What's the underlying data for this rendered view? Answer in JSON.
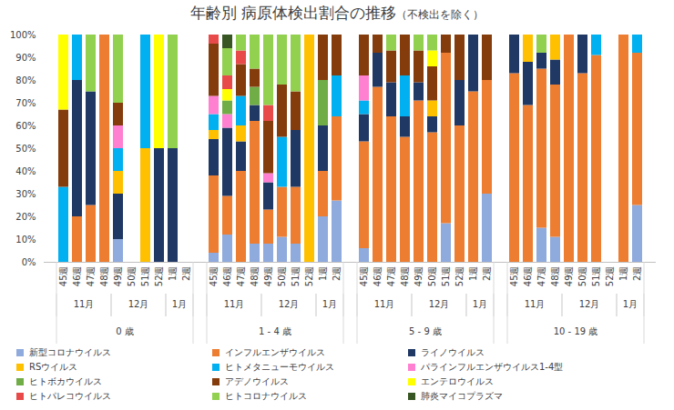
{
  "chart_data": {
    "type": "bar",
    "stacked": true,
    "title": "年齢別 病原体検出割合の推移",
    "subtitle": "（不検出を除く）",
    "categories": [
      "45週",
      "46週",
      "47週",
      "48週",
      "49週",
      "50週",
      "51週",
      "52週",
      "1週",
      "2週",
      "45週",
      "46週",
      "47週",
      "48週",
      "49週",
      "50週",
      "51週",
      "52週",
      "1週",
      "2週",
      "45週",
      "46週",
      "47週",
      "48週",
      "49週",
      "50週",
      "51週",
      "52週",
      "1週",
      "2週",
      "45週",
      "46週",
      "47週",
      "48週",
      "49週",
      "50週",
      "51週",
      "52週",
      "1週",
      "2週"
    ],
    "category_months": [
      "11月",
      "11月",
      "11月",
      "11月",
      "12月",
      "12月",
      "12月",
      "12月",
      "1月",
      "1月",
      "11月",
      "11月",
      "11月",
      "11月",
      "12月",
      "12月",
      "12月",
      "12月",
      "1月",
      "1月",
      "11月",
      "11月",
      "11月",
      "11月",
      "12月",
      "12月",
      "12月",
      "12月",
      "1月",
      "1月",
      "11月",
      "11月",
      "11月",
      "11月",
      "12月",
      "12月",
      "12月",
      "12月",
      "1月",
      "1月"
    ],
    "category_groups": [
      "0 歳",
      "0 歳",
      "0 歳",
      "0 歳",
      "0 歳",
      "0 歳",
      "0 歳",
      "0 歳",
      "0 歳",
      "0 歳",
      "1 - 4 歳",
      "1 - 4 歳",
      "1 - 4 歳",
      "1 - 4 歳",
      "1 - 4 歳",
      "1 - 4 歳",
      "1 - 4 歳",
      "1 - 4 歳",
      "1 - 4 歳",
      "1 - 4 歳",
      "5 - 9 歳",
      "5 - 9 歳",
      "5 - 9 歳",
      "5 - 9 歳",
      "5 - 9 歳",
      "5 - 9 歳",
      "5 - 9 歳",
      "5 - 9 歳",
      "5 - 9 歳",
      "5 - 9 歳",
      "10 - 19 歳",
      "10 - 19 歳",
      "10 - 19 歳",
      "10 - 19 歳",
      "10 - 19 歳",
      "10 - 19 歳",
      "10 - 19 歳",
      "10 - 19 歳",
      "10 - 19 歳",
      "10 - 19 歳"
    ],
    "ylim": [
      0,
      100
    ],
    "yticks": [
      {
        "value": 0,
        "label": "0%"
      },
      {
        "value": 10,
        "label": "10%"
      },
      {
        "value": 20,
        "label": "20%"
      },
      {
        "value": 30,
        "label": "30%"
      },
      {
        "value": 40,
        "label": "40%"
      },
      {
        "value": 50,
        "label": "50%"
      },
      {
        "value": 60,
        "label": "60%"
      },
      {
        "value": 70,
        "label": "70%"
      },
      {
        "value": 80,
        "label": "80%"
      },
      {
        "value": 90,
        "label": "90%"
      },
      {
        "value": 100,
        "label": "100%"
      }
    ],
    "grid": false,
    "legend": "bottom",
    "series": [
      {
        "name": "新型コロナウイルス",
        "color": "#8faadc",
        "values": [
          0,
          0,
          0,
          0,
          10,
          0,
          0,
          0,
          0,
          0,
          4,
          12,
          0,
          8,
          8,
          11,
          8,
          0,
          20,
          27,
          6,
          0,
          0,
          0,
          0,
          0,
          17,
          0,
          0,
          30,
          0,
          0,
          15,
          11,
          0,
          0,
          0,
          0,
          0,
          25
        ]
      },
      {
        "name": "インフルエンザウイルス",
        "color": "#ed7d31",
        "values": [
          0,
          20,
          25,
          100,
          0,
          0,
          0,
          0,
          0,
          0,
          34,
          17,
          40,
          54,
          15,
          22,
          25,
          0,
          20,
          37,
          47,
          77,
          64,
          55,
          71,
          57,
          75,
          60,
          75,
          50,
          83,
          69,
          70,
          67,
          100,
          83,
          91,
          0,
          100,
          67
        ]
      },
      {
        "name": "ライノウイルス",
        "color": "#203864",
        "values": [
          0,
          60,
          50,
          0,
          20,
          0,
          0,
          50,
          50,
          0,
          16,
          30,
          13,
          7,
          12,
          0,
          25,
          0,
          20,
          0,
          12,
          15,
          15,
          9,
          8,
          7,
          0,
          20,
          25,
          0,
          17,
          19,
          7,
          11,
          0,
          17,
          0,
          0,
          0,
          0
        ]
      },
      {
        "name": "RSウイルス",
        "color": "#ffc000",
        "values": [
          0,
          0,
          0,
          0,
          10,
          0,
          50,
          0,
          0,
          0,
          4,
          0,
          7,
          0,
          0,
          0,
          0,
          100,
          0,
          0,
          0,
          0,
          0,
          0,
          0,
          7,
          0,
          0,
          0,
          0,
          0,
          12,
          0,
          11,
          0,
          0,
          0,
          0,
          0,
          0
        ]
      },
      {
        "name": "ヒトメタニューモウイルス",
        "color": "#00b0f0",
        "values": [
          33,
          20,
          0,
          0,
          10,
          0,
          50,
          0,
          0,
          0,
          7,
          0,
          13,
          0,
          0,
          22,
          0,
          0,
          0,
          18,
          6,
          0,
          0,
          18,
          0,
          0,
          0,
          0,
          0,
          0,
          0,
          0,
          0,
          0,
          0,
          0,
          9,
          0,
          0,
          8
        ]
      },
      {
        "name": "パラインフルエンザウイルス1-4型",
        "color": "#ff7fd0",
        "values": [
          0,
          0,
          0,
          0,
          10,
          0,
          0,
          0,
          0,
          0,
          8,
          6,
          0,
          0,
          4,
          0,
          0,
          0,
          0,
          0,
          11,
          0,
          0,
          0,
          0,
          0,
          0,
          0,
          0,
          0,
          0,
          0,
          0,
          0,
          0,
          0,
          0,
          0,
          0,
          0
        ]
      },
      {
        "name": "ヒトボカウイルス",
        "color": "#70ad47",
        "values": [
          0,
          0,
          0,
          0,
          0,
          0,
          0,
          0,
          0,
          0,
          0,
          6,
          0,
          8,
          0,
          0,
          0,
          0,
          20,
          0,
          0,
          0,
          0,
          0,
          0,
          0,
          0,
          0,
          0,
          0,
          0,
          0,
          0,
          0,
          0,
          0,
          0,
          0,
          0,
          0
        ]
      },
      {
        "name": "アデノウイルス",
        "color": "#843c0c",
        "values": [
          34,
          0,
          0,
          0,
          10,
          0,
          0,
          0,
          0,
          0,
          23,
          0,
          14,
          8,
          23,
          23,
          17,
          0,
          20,
          18,
          18,
          8,
          14,
          18,
          14,
          15,
          8,
          20,
          0,
          20,
          0,
          0,
          0,
          0,
          0,
          0,
          0,
          0,
          0,
          0
        ]
      },
      {
        "name": "エンテロウイルス",
        "color": "#ffff00",
        "values": [
          33,
          0,
          0,
          0,
          0,
          0,
          0,
          50,
          0,
          0,
          0,
          5,
          0,
          0,
          0,
          0,
          0,
          0,
          0,
          0,
          0,
          0,
          0,
          0,
          0,
          7,
          0,
          0,
          0,
          0,
          0,
          0,
          0,
          0,
          0,
          0,
          0,
          0,
          0,
          0
        ]
      },
      {
        "name": "ヒトパレコウイルス",
        "color": "#e84a4a",
        "values": [
          0,
          0,
          0,
          0,
          0,
          0,
          0,
          0,
          0,
          0,
          4,
          6,
          6,
          0,
          7,
          0,
          0,
          0,
          0,
          0,
          0,
          0,
          0,
          0,
          0,
          0,
          0,
          0,
          0,
          0,
          0,
          0,
          0,
          0,
          0,
          0,
          0,
          0,
          0,
          0
        ]
      },
      {
        "name": "ヒトコロナウイルス",
        "color": "#92d050",
        "values": [
          0,
          0,
          25,
          0,
          30,
          0,
          0,
          0,
          50,
          0,
          0,
          12,
          7,
          15,
          31,
          22,
          25,
          0,
          0,
          0,
          0,
          0,
          7,
          0,
          7,
          7,
          0,
          0,
          0,
          0,
          0,
          0,
          8,
          0,
          0,
          0,
          0,
          0,
          0,
          0
        ]
      },
      {
        "name": "肺炎マイコプラズマ",
        "color": "#375623",
        "values": [
          0,
          0,
          0,
          0,
          0,
          0,
          0,
          0,
          0,
          0,
          0,
          6,
          0,
          0,
          0,
          0,
          0,
          0,
          0,
          0,
          0,
          0,
          0,
          0,
          0,
          0,
          0,
          0,
          0,
          0,
          0,
          0,
          0,
          0,
          0,
          0,
          0,
          0,
          0,
          0
        ]
      }
    ]
  }
}
